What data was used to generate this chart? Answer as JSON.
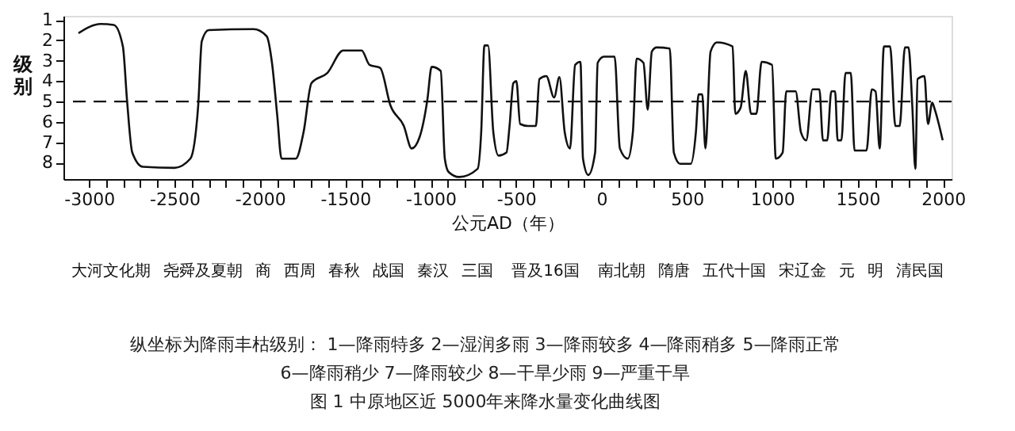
{
  "chart_data": {
    "type": "line",
    "xlabel": "公元AD（年）",
    "ylabel": "级别",
    "xlim": [
      -3150,
      2050
    ],
    "ylim": [
      8.8,
      0.8
    ],
    "yticks": [
      1,
      2,
      3,
      4,
      5,
      6,
      7,
      8
    ],
    "xticks": [
      -3000,
      {
        "value": -2900,
        "label": null
      },
      {
        "value": -2800,
        "label": null
      },
      {
        "value": -2700,
        "label": null
      },
      {
        "value": -2600,
        "label": null
      },
      -2500,
      {
        "value": -2400,
        "label": null
      },
      {
        "value": -2300,
        "label": null
      },
      {
        "value": -2200,
        "label": null
      },
      {
        "value": -2100,
        "label": null
      },
      -2000,
      {
        "value": -1900,
        "label": null
      },
      {
        "value": -1800,
        "label": null
      },
      {
        "value": -1700,
        "label": null
      },
      {
        "value": -1600,
        "label": null
      },
      -1500,
      {
        "value": -1400,
        "label": null
      },
      {
        "value": -1300,
        "label": null
      },
      {
        "value": -1200,
        "label": null
      },
      {
        "value": -1100,
        "label": null
      },
      -1000,
      {
        "value": -900,
        "label": null
      },
      {
        "value": -800,
        "label": null
      },
      {
        "value": -700,
        "label": null
      },
      {
        "value": -600,
        "label": null
      },
      -500,
      {
        "value": -400,
        "label": null
      },
      {
        "value": -300,
        "label": null
      },
      {
        "value": -200,
        "label": null
      },
      {
        "value": -100,
        "label": null
      },
      0,
      {
        "value": 100,
        "label": null
      },
      {
        "value": 200,
        "label": null
      },
      {
        "value": 300,
        "label": null
      },
      {
        "value": 400,
        "label": null
      },
      500,
      {
        "value": 600,
        "label": null
      },
      {
        "value": 700,
        "label": null
      },
      {
        "value": 800,
        "label": null
      },
      {
        "value": 900,
        "label": null
      },
      1000,
      {
        "value": 1100,
        "label": null
      },
      {
        "value": 1200,
        "label": null
      },
      {
        "value": 1300,
        "label": null
      },
      {
        "value": 1400,
        "label": null
      },
      1500,
      {
        "value": 1600,
        "label": null
      },
      {
        "value": 1700,
        "label": null
      },
      {
        "value": 1800,
        "label": null
      },
      {
        "value": 1900,
        "label": null
      },
      2000
    ],
    "grid": false,
    "marker": "none",
    "line_style": "solid",
    "x": [
      -3062,
      -2932,
      -2855,
      -2802,
      -2778,
      -2747,
      -2685,
      -2500,
      -2407,
      -2361,
      -2340,
      -2300,
      -2037,
      -1960,
      -1929,
      -1898,
      -1873,
      -1790,
      -1744,
      -1698,
      -1605,
      -1512,
      -1404,
      -1358,
      -1296,
      -1235,
      -1157,
      -1111,
      -1065,
      -1019,
      -994,
      -941,
      -917,
      -895,
      -833,
      -725,
      -704,
      -685,
      -664,
      -633,
      -602,
      -556,
      -538,
      -516,
      -498,
      -476,
      -430,
      -384,
      -363,
      -323,
      -277,
      -246,
      -215,
      -184,
      -154,
      -123,
      -108,
      -77,
      -37,
      -22,
      15,
      77,
      108,
      154,
      184,
      206,
      246,
      271,
      295,
      323,
      400,
      424,
      461,
      523,
      553,
      569,
      590,
      609,
      639,
      676,
      768,
      784,
      815,
      845,
      876,
      907,
      938,
      999,
      1021,
      1061,
      1082,
      1137,
      1168,
      1199,
      1236,
      1276,
      1297,
      1322,
      1346,
      1368,
      1383,
      1405,
      1429,
      1460,
      1482,
      1552,
      1583,
      1605,
      1629,
      1654,
      1690,
      1721,
      1746,
      1777,
      1798,
      1820,
      1838,
      1851,
      1891,
      1912,
      1937,
      1952,
      1998
    ],
    "series": [
      {
        "color": "#111111",
        "values": [
          1.65,
          1.2,
          1.25,
          2.3,
          4.9,
          7.5,
          8.2,
          8.25,
          7.8,
          5.2,
          2.05,
          1.5,
          1.45,
          1.8,
          3.1,
          5.7,
          7.8,
          7.8,
          6.5,
          4.1,
          3.6,
          2.5,
          2.5,
          3.2,
          3.35,
          5.2,
          6.2,
          7.3,
          6.75,
          4.9,
          3.3,
          3.5,
          7.8,
          8.45,
          8.7,
          8.3,
          6.5,
          2.25,
          2.25,
          6.5,
          7.65,
          7.5,
          6.2,
          4.1,
          4.0,
          6.1,
          6.2,
          6.2,
          3.9,
          3.75,
          4.8,
          3.8,
          6.5,
          7.3,
          3.2,
          3.05,
          7.8,
          8.6,
          7.5,
          3.1,
          2.8,
          2.8,
          7.3,
          7.8,
          6.5,
          2.9,
          3.1,
          5.4,
          2.55,
          2.35,
          2.4,
          7.5,
          8.05,
          8.05,
          6.5,
          4.65,
          4.65,
          7.3,
          2.55,
          2.1,
          2.3,
          5.6,
          5.3,
          3.5,
          5.6,
          5.6,
          3.05,
          3.2,
          7.8,
          7.5,
          4.5,
          4.5,
          6.5,
          6.9,
          4.4,
          4.4,
          6.9,
          6.9,
          4.5,
          4.5,
          6.9,
          6.9,
          3.6,
          3.6,
          7.4,
          7.4,
          4.4,
          4.5,
          7.3,
          2.3,
          2.3,
          6.2,
          6.2,
          2.35,
          2.35,
          5.2,
          8.3,
          3.9,
          3.75,
          6.1,
          5.05,
          5.4,
          6.9
        ]
      }
    ],
    "ref_lines": [
      {
        "axis": "y",
        "value": 5,
        "color": "#111111",
        "line_style": "dashed"
      }
    ],
    "annotations": [
      "大河文化期",
      "尧舜及夏朝",
      "商",
      "西周",
      "春秋",
      "战国",
      "秦汉",
      "三国",
      "晋及16国",
      "南北朝",
      "隋唐",
      "五代十国",
      "宋辽金",
      "元",
      "明",
      "清民国",
      "纵坐标为降雨丰枯级别：  1—降雨特多   2—湿润多雨   3—降雨较多   4—降雨稍多   5—降雨正常",
      "6—降雨稍少   7—降雨较少   8—干旱少雨   9—严重干旱",
      "图  1   中原地区近  5000年来降水量变化曲线图"
    ]
  }
}
